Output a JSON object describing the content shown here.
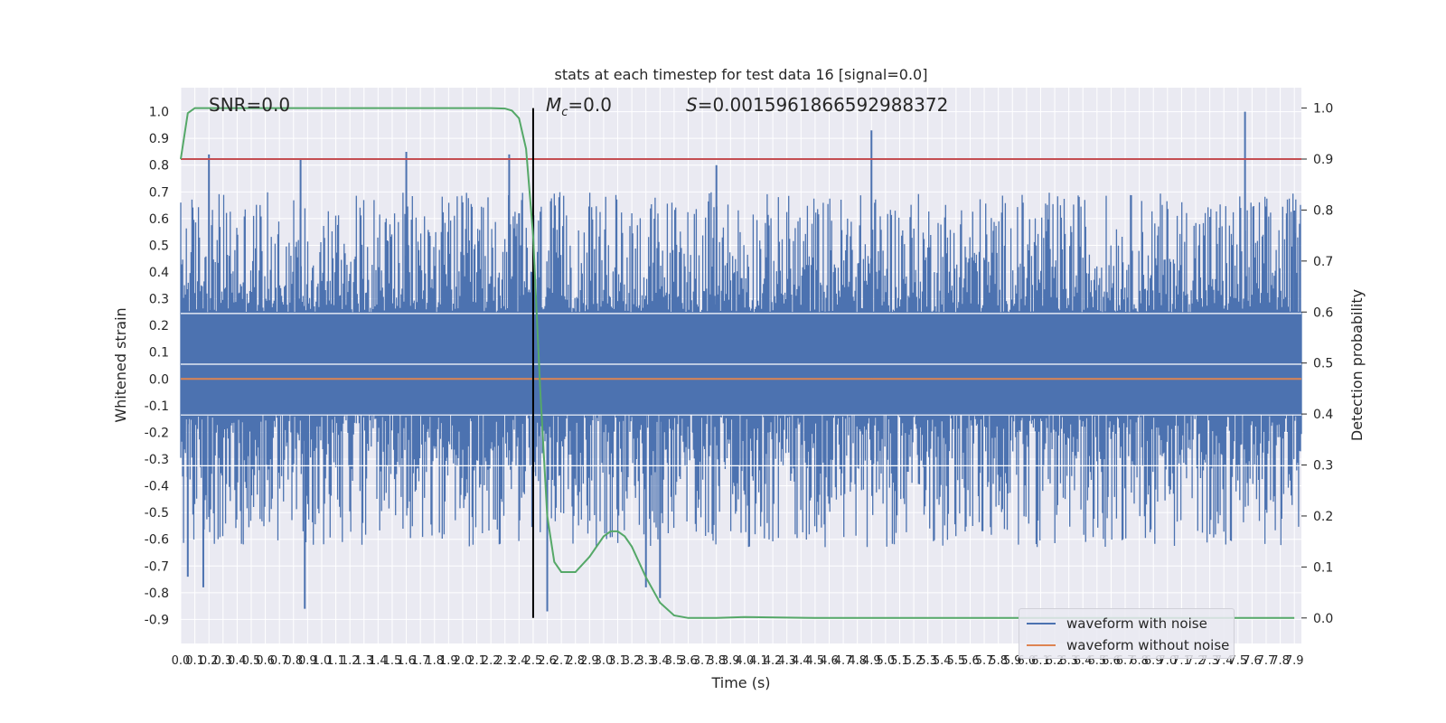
{
  "chart_data": {
    "type": "line",
    "title": "stats at each timestep for test data 16 [signal=0.0]",
    "xlabel": "Time (s)",
    "ylabel": "Whitened strain",
    "y2label": "Detection probability",
    "xlim": [
      0.0,
      7.95
    ],
    "ylim": [
      -0.99,
      1.09
    ],
    "y2lim": [
      -0.05,
      1.04
    ],
    "x_ticks": [
      "0.0",
      "0.1",
      "0.2",
      "0.3",
      "0.4",
      "0.5",
      "0.6",
      "0.7",
      "0.8",
      "0.9",
      "1.0",
      "1.1",
      "1.2",
      "1.3",
      "1.4",
      "1.5",
      "1.6",
      "1.7",
      "1.8",
      "1.9",
      "2.0",
      "2.1",
      "2.2",
      "2.3",
      "2.4",
      "2.5",
      "2.6",
      "2.7",
      "2.8",
      "2.9",
      "3.0",
      "3.1",
      "3.2",
      "3.3",
      "3.4",
      "3.5",
      "3.6",
      "3.7",
      "3.8",
      "3.9",
      "4.0",
      "4.1",
      "4.2",
      "4.3",
      "4.4",
      "4.5",
      "4.6",
      "4.7",
      "4.8",
      "4.9",
      "5.0",
      "5.1",
      "5.2",
      "5.3",
      "5.4",
      "5.5",
      "5.6",
      "5.7",
      "5.8",
      "5.9",
      "6.0",
      "6.1",
      "6.2",
      "6.3",
      "6.4",
      "6.5",
      "6.6",
      "6.7",
      "6.8",
      "6.9",
      "7.0",
      "7.1",
      "7.2",
      "7.3",
      "7.4",
      "7.5",
      "7.6",
      "7.7",
      "7.8",
      "7.9"
    ],
    "y_ticks": [
      "1.0",
      "0.9",
      "0.8",
      "0.7",
      "0.6",
      "0.5",
      "0.4",
      "0.3",
      "0.2",
      "0.1",
      "0.0",
      "-0.1",
      "-0.2",
      "-0.3",
      "-0.4",
      "-0.5",
      "-0.6",
      "-0.7",
      "-0.8",
      "-0.9"
    ],
    "y2_ticks": [
      "1.0",
      "0.9",
      "0.8",
      "0.7",
      "0.6",
      "0.5",
      "0.4",
      "0.3",
      "0.2",
      "0.1",
      "0.0"
    ],
    "threshold": 0.9,
    "marker_time": 2.5,
    "series": [
      {
        "name": "waveform with noise",
        "color": "#4c72b0",
        "kind": "noise",
        "spikes": [
          {
            "x": 0.05,
            "y": -0.74
          },
          {
            "x": 0.16,
            "y": -0.78
          },
          {
            "x": 0.2,
            "y": 0.84
          },
          {
            "x": 0.85,
            "y": 0.82
          },
          {
            "x": 0.88,
            "y": -0.86
          },
          {
            "x": 1.6,
            "y": 0.85
          },
          {
            "x": 2.33,
            "y": 0.84
          },
          {
            "x": 2.6,
            "y": -0.87
          },
          {
            "x": 3.3,
            "y": -0.78
          },
          {
            "x": 3.4,
            "y": -0.82
          },
          {
            "x": 3.8,
            "y": 0.8
          },
          {
            "x": 4.9,
            "y": 0.93
          },
          {
            "x": 7.55,
            "y": 1.0
          },
          {
            "x": 2.4,
            "y": 0.62
          },
          {
            "x": 7.9,
            "y": 0.63
          }
        ]
      },
      {
        "name": "waveform without noise",
        "color": "#dd8452",
        "values": [
          0.0,
          0.0
        ]
      },
      {
        "name": "detection probability",
        "color": "#55a868",
        "axis": "right",
        "x": [
          0.0,
          0.05,
          0.1,
          0.2,
          0.5,
          1.0,
          1.5,
          2.0,
          2.2,
          2.3,
          2.35,
          2.4,
          2.45,
          2.5,
          2.55,
          2.6,
          2.65,
          2.7,
          2.75,
          2.8,
          2.9,
          3.0,
          3.05,
          3.1,
          3.15,
          3.2,
          3.3,
          3.4,
          3.5,
          3.6,
          3.8,
          4.0,
          4.5,
          5.0,
          6.0,
          7.0,
          7.9
        ],
        "y": [
          0.9,
          0.99,
          1.0,
          1.0,
          1.0,
          1.0,
          1.0,
          1.0,
          1.0,
          0.999,
          0.995,
          0.98,
          0.92,
          0.75,
          0.45,
          0.2,
          0.11,
          0.09,
          0.09,
          0.09,
          0.12,
          0.16,
          0.17,
          0.17,
          0.16,
          0.14,
          0.08,
          0.03,
          0.005,
          0.0,
          0.0,
          0.002,
          0.0,
          0.0,
          0.0,
          0.0,
          0.0
        ]
      }
    ]
  },
  "annotations": {
    "snr": "SNR=0.0",
    "mc_symbol": "M",
    "mc_sub": "c",
    "mc_value": "=0.0",
    "s_symbol": "S",
    "s_value": "=0.0015961866592988372"
  },
  "legend": {
    "items": [
      {
        "label": "waveform with noise",
        "color": "#4c72b0"
      },
      {
        "label": "waveform without noise",
        "color": "#dd8452"
      }
    ]
  }
}
